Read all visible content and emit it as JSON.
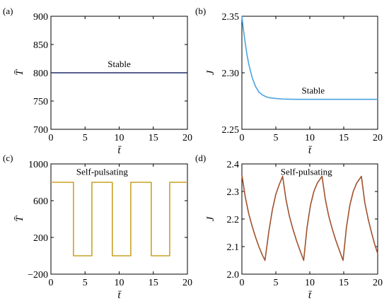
{
  "chart_data": [
    {
      "panel_label": "(a)",
      "type": "line",
      "xlabel": "t̄",
      "ylabel": "T̄",
      "xlim": [
        0,
        20
      ],
      "ylim": [
        700,
        900
      ],
      "xticks": [
        0,
        5,
        10,
        15,
        20
      ],
      "yticks": [
        700,
        750,
        800,
        850,
        900
      ],
      "annotation": "Stable",
      "annotation_at": [
        10,
        810
      ],
      "color": "#1f2a6b",
      "series": [
        {
          "x": [
            0,
            20
          ],
          "y": [
            800,
            800
          ]
        }
      ]
    },
    {
      "panel_label": "(b)",
      "type": "line",
      "xlabel": "t̄",
      "ylabel": "J",
      "xlim": [
        0,
        20
      ],
      "ylim": [
        2.25,
        2.35
      ],
      "xticks": [
        0,
        5,
        10,
        15,
        20
      ],
      "yticks": [
        2.25,
        2.3,
        2.35
      ],
      "ytick_labels": [
        "2.25",
        "2.30",
        "2.35"
      ],
      "annotation": "Stable",
      "annotation_at": [
        10.5,
        2.2815
      ],
      "color": "#4aa3df",
      "series": [
        {
          "x": [
            0,
            0.25,
            0.5,
            0.75,
            1,
            1.5,
            2,
            2.5,
            3,
            3.5,
            4,
            5,
            6,
            7,
            8,
            10,
            12,
            15,
            20
          ],
          "y": [
            2.35,
            2.337,
            2.326,
            2.316,
            2.308,
            2.296,
            2.288,
            2.283,
            2.2805,
            2.279,
            2.278,
            2.2772,
            2.2768,
            2.2766,
            2.2765,
            2.2765,
            2.2765,
            2.2765,
            2.2765
          ]
        }
      ]
    },
    {
      "panel_label": "(c)",
      "type": "line",
      "xlabel": "t̄",
      "ylabel": "T̄",
      "xlim": [
        0,
        20
      ],
      "ylim": [
        -200,
        1000
      ],
      "xticks": [
        0,
        5,
        10,
        15,
        20
      ],
      "yticks": [
        -200,
        200,
        600,
        1000
      ],
      "ytick_labels": [
        "−200",
        "200",
        "600",
        "1000"
      ],
      "annotation": "Self-pulsating",
      "annotation_at": [
        7.5,
        880
      ],
      "color": "#c9a227",
      "series": [
        {
          "x": [
            0,
            3.3,
            3.3,
            6.0,
            6.0,
            9.0,
            9.0,
            11.7,
            11.7,
            14.7,
            14.7,
            17.4,
            17.4,
            20
          ],
          "y": [
            800,
            800,
            0,
            0,
            800,
            800,
            0,
            0,
            800,
            800,
            0,
            0,
            800,
            800
          ]
        }
      ]
    },
    {
      "panel_label": "(d)",
      "type": "line",
      "xlabel": "t̄",
      "ylabel": "J",
      "xlim": [
        0,
        20
      ],
      "ylim": [
        2.0,
        2.4
      ],
      "xticks": [
        0,
        5,
        10,
        15,
        20
      ],
      "yticks": [
        2.0,
        2.1,
        2.2,
        2.3,
        2.4
      ],
      "ytick_labels": [
        "2.0",
        "2.1",
        "2.2",
        "2.3",
        "2.4"
      ],
      "annotation": "Self-pulsating",
      "annotation_at": [
        9.5,
        2.36
      ],
      "color": "#a0522d",
      "series": [
        {
          "x": [
            0,
            0.5,
            1,
            1.5,
            2,
            2.5,
            3,
            3.4,
            3.4,
            4,
            4.5,
            5,
            5.5,
            6.0,
            6.0,
            6.5,
            7,
            7.5,
            8,
            8.5,
            9.1,
            9.1,
            9.6,
            10.1,
            10.6,
            11.1,
            11.8,
            11.8,
            12.3,
            12.8,
            13.3,
            13.8,
            14.3,
            14.9,
            14.9,
            15.4,
            15.9,
            16.4,
            16.9,
            17.6,
            17.6,
            18.1,
            18.6,
            19.1,
            19.6,
            20
          ],
          "y": [
            2.36,
            2.28,
            2.22,
            2.175,
            2.135,
            2.1,
            2.07,
            2.05,
            2.05,
            2.16,
            2.235,
            2.29,
            2.325,
            2.355,
            2.355,
            2.27,
            2.21,
            2.165,
            2.125,
            2.09,
            2.05,
            2.05,
            2.17,
            2.25,
            2.3,
            2.33,
            2.355,
            2.355,
            2.27,
            2.21,
            2.165,
            2.125,
            2.09,
            2.05,
            2.05,
            2.17,
            2.25,
            2.3,
            2.33,
            2.355,
            2.355,
            2.26,
            2.2,
            2.15,
            2.105,
            2.075
          ]
        }
      ]
    }
  ]
}
